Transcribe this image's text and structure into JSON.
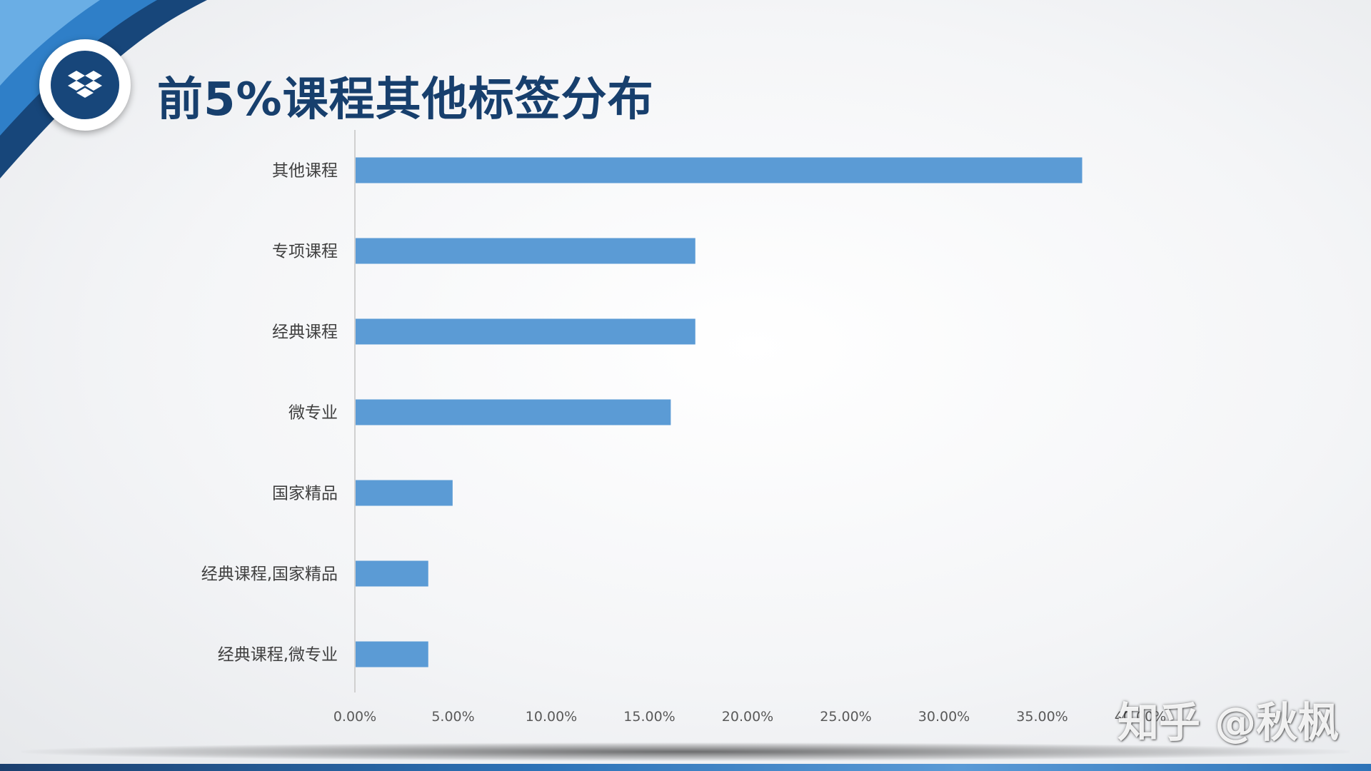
{
  "header": {
    "title": "前5%课程其他标签分布",
    "logo_icon": "dropbox-box-icon"
  },
  "watermark": "知乎 @秋枫",
  "colors": {
    "bar": "#5b9bd5",
    "title": "#173f6d",
    "accent_dark": "#17467a",
    "accent_light": "#2f7fc8"
  },
  "chart_data": {
    "type": "bar",
    "orientation": "horizontal",
    "title": "",
    "xlabel": "",
    "ylabel": "",
    "categories": [
      "其他课程",
      "专项课程",
      "经典课程",
      "微专业",
      "国家精品",
      "经典课程,国家精品",
      "经典课程,微专业"
    ],
    "values": [
      37.0,
      17.3,
      17.3,
      16.05,
      4.94,
      3.7,
      3.7
    ],
    "xlim": [
      0,
      40
    ],
    "x_ticks": [
      "0.00%",
      "5.00%",
      "10.00%",
      "15.00%",
      "20.00%",
      "25.00%",
      "30.00%",
      "35.00%",
      "40.00%"
    ],
    "grid": false,
    "legend": "none"
  }
}
